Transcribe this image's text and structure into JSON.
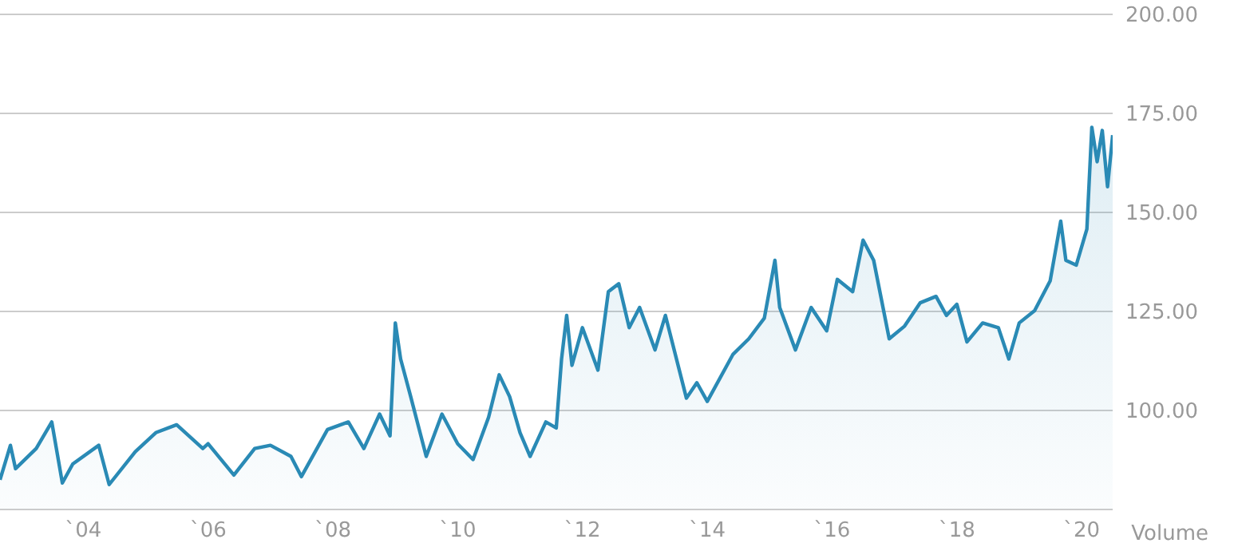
{
  "chart_data": {
    "type": "area",
    "x": [
      "2002-09",
      "2002-11",
      "2002-12",
      "2003-04",
      "2003-07",
      "2003-09",
      "2003-11",
      "2004-04",
      "2004-06",
      "2004-11",
      "2005-03",
      "2005-07",
      "2005-12",
      "2006-01",
      "2006-06",
      "2006-10",
      "2007-01",
      "2007-05",
      "2007-07",
      "2007-12",
      "2008-04",
      "2008-07",
      "2008-10",
      "2008-12",
      "2009-01",
      "2009-02",
      "2009-04",
      "2009-07",
      "2009-10",
      "2010-01",
      "2010-04",
      "2010-07",
      "2010-09",
      "2010-11",
      "2011-01",
      "2011-03",
      "2011-06",
      "2011-08",
      "2011-09",
      "2011-10",
      "2011-11",
      "2012-01",
      "2012-04",
      "2012-06",
      "2012-08",
      "2012-10",
      "2012-12",
      "2013-03",
      "2013-05",
      "2013-09",
      "2013-11",
      "2014-01",
      "2014-06",
      "2014-09",
      "2014-12",
      "2015-02",
      "2015-03",
      "2015-06",
      "2015-09",
      "2015-12",
      "2016-02",
      "2016-05",
      "2016-07",
      "2016-09",
      "2016-12",
      "2017-03",
      "2017-06",
      "2017-09",
      "2017-11",
      "2018-01",
      "2018-03",
      "2018-06",
      "2018-09",
      "2018-11",
      "2019-01",
      "2019-04",
      "2019-07",
      "2019-09",
      "2019-10",
      "2019-12",
      "2020-02",
      "2020-03",
      "2020-04",
      "2020-05",
      "2020-06",
      "2020-07"
    ],
    "series": [
      {
        "color": "#2a8ab5",
        "values": [
          82.5,
          91.2,
          85.3,
          90.4,
          97.1,
          81.7,
          86.5,
          91.2,
          81.3,
          89.6,
          94.4,
          96.4,
          90.4,
          91.6,
          83.7,
          90.4,
          91.2,
          88.4,
          83.3,
          95.2,
          97.1,
          90.4,
          99.1,
          93.6,
          122.1,
          113.0,
          103.5,
          88.4,
          99.1,
          91.6,
          87.6,
          98.3,
          109.0,
          103.5,
          94.4,
          88.4,
          97.1,
          95.6,
          113.0,
          124.0,
          111.4,
          120.9,
          110.2,
          130.0,
          132.0,
          120.9,
          126.0,
          115.3,
          124.0,
          103.1,
          107.0,
          102.3,
          114.2,
          118.1,
          123.3,
          137.9,
          126.0,
          115.3,
          126.0,
          120.1,
          133.1,
          130.0,
          143.0,
          137.9,
          118.1,
          121.3,
          127.2,
          128.8,
          124.0,
          126.8,
          117.3,
          122.1,
          120.9,
          113.0,
          122.1,
          125.2,
          132.7,
          147.8,
          137.9,
          136.7,
          145.8,
          171.5,
          162.8,
          170.7,
          156.5,
          169.5
        ]
      }
    ],
    "xlim": [
      "2002-09",
      "2020-07"
    ],
    "xticks": [
      {
        "value": "2004",
        "label": "`04"
      },
      {
        "value": "2006",
        "label": "`06"
      },
      {
        "value": "2008",
        "label": "`08"
      },
      {
        "value": "2010",
        "label": "`10"
      },
      {
        "value": "2012",
        "label": "`12"
      },
      {
        "value": "2014",
        "label": "`14"
      },
      {
        "value": "2016",
        "label": "`16"
      },
      {
        "value": "2018",
        "label": "`18"
      },
      {
        "value": "2020",
        "label": "`20"
      }
    ],
    "ylim": [
      75,
      200
    ],
    "yticks": [
      {
        "value": 75,
        "label": null
      },
      {
        "value": 100,
        "label": "100.00"
      },
      {
        "value": 125,
        "label": "125.00"
      },
      {
        "value": 150,
        "label": "150.00"
      },
      {
        "value": 175,
        "label": "175.00"
      },
      {
        "value": 200,
        "label": "200.00"
      }
    ],
    "grid": "y",
    "annotations": [
      "Volume"
    ]
  }
}
